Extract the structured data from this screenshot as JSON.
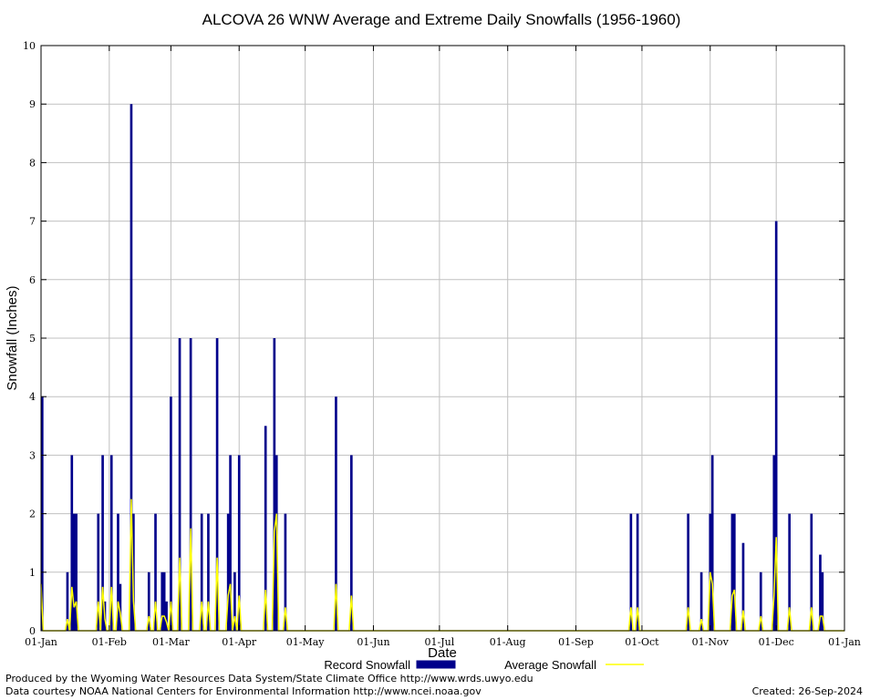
{
  "chart_data": {
    "type": "bar",
    "title": "ALCOVA 26 WNW Average and Extreme Daily Snowfalls (1956-1960)",
    "xlabel": "Date",
    "ylabel": "Snowfall (Inches)",
    "ylim": [
      0,
      10
    ],
    "yticks": [
      "0",
      "1",
      "2",
      "3",
      "4",
      "5",
      "6",
      "7",
      "8",
      "9",
      "10"
    ],
    "xlim_days": [
      1,
      366
    ],
    "xticks": [
      {
        "label": "01-Jan",
        "day": 1
      },
      {
        "label": "01-Feb",
        "day": 32
      },
      {
        "label": "01-Mar",
        "day": 60
      },
      {
        "label": "01-Apr",
        "day": 91
      },
      {
        "label": "01-May",
        "day": 121
      },
      {
        "label": "01-Jun",
        "day": 152
      },
      {
        "label": "01-Jul",
        "day": 182
      },
      {
        "label": "01-Aug",
        "day": 213
      },
      {
        "label": "01-Sep",
        "day": 244
      },
      {
        "label": "01-Oct",
        "day": 274
      },
      {
        "label": "01-Nov",
        "day": 305
      },
      {
        "label": "01-Dec",
        "day": 335
      },
      {
        "label": "01-Jan",
        "day": 366
      }
    ],
    "grid": true,
    "legend_position": "bottom",
    "series": [
      {
        "name": "Record Snowfall",
        "color": "#00008b",
        "points": [
          {
            "date": "01-Jan",
            "value": 4.0
          },
          {
            "date": "13-Jan",
            "value": 1.0
          },
          {
            "date": "15-Jan",
            "value": 3.0
          },
          {
            "date": "16-Jan",
            "value": 2.0
          },
          {
            "date": "17-Jan",
            "value": 2.0
          },
          {
            "date": "27-Jan",
            "value": 2.0
          },
          {
            "date": "29-Jan",
            "value": 3.0
          },
          {
            "date": "30-Jan",
            "value": 0.5
          },
          {
            "date": "02-Feb",
            "value": 3.0
          },
          {
            "date": "05-Feb",
            "value": 2.0
          },
          {
            "date": "06-Feb",
            "value": 0.8
          },
          {
            "date": "11-Feb",
            "value": 9.0
          },
          {
            "date": "12-Feb",
            "value": 2.0
          },
          {
            "date": "19-Feb",
            "value": 1.0
          },
          {
            "date": "22-Feb",
            "value": 2.0
          },
          {
            "date": "25-Feb",
            "value": 1.0
          },
          {
            "date": "26-Feb",
            "value": 1.0
          },
          {
            "date": "27-Feb",
            "value": 0.5
          },
          {
            "date": "29-Feb",
            "value": 4.0
          },
          {
            "date": "01-Mar",
            "value": 2.0
          },
          {
            "date": "05-Mar",
            "value": 5.0
          },
          {
            "date": "10-Mar",
            "value": 5.0
          },
          {
            "date": "15-Mar",
            "value": 2.0
          },
          {
            "date": "18-Mar",
            "value": 2.0
          },
          {
            "date": "22-Mar",
            "value": 5.0
          },
          {
            "date": "27-Mar",
            "value": 2.0
          },
          {
            "date": "28-Mar",
            "value": 3.0
          },
          {
            "date": "30-Mar",
            "value": 1.0
          },
          {
            "date": "01-Apr",
            "value": 3.0
          },
          {
            "date": "13-Apr",
            "value": 3.5
          },
          {
            "date": "17-Apr",
            "value": 5.0
          },
          {
            "date": "18-Apr",
            "value": 3.0
          },
          {
            "date": "22-Apr",
            "value": 2.0
          },
          {
            "date": "15-May",
            "value": 4.0
          },
          {
            "date": "22-May",
            "value": 3.0
          },
          {
            "date": "26-Sep",
            "value": 2.0
          },
          {
            "date": "29-Sep",
            "value": 2.0
          },
          {
            "date": "22-Oct",
            "value": 2.0
          },
          {
            "date": "28-Oct",
            "value": 1.0
          },
          {
            "date": "01-Nov",
            "value": 2.0
          },
          {
            "date": "02-Nov",
            "value": 3.0
          },
          {
            "date": "11-Nov",
            "value": 2.0
          },
          {
            "date": "12-Nov",
            "value": 2.0
          },
          {
            "date": "16-Nov",
            "value": 1.5
          },
          {
            "date": "24-Nov",
            "value": 1.0
          },
          {
            "date": "30-Nov",
            "value": 3.0
          },
          {
            "date": "01-Dec",
            "value": 7.0
          },
          {
            "date": "07-Dec",
            "value": 2.0
          },
          {
            "date": "17-Dec",
            "value": 2.0
          },
          {
            "date": "21-Dec",
            "value": 1.3
          },
          {
            "date": "22-Dec",
            "value": 1.0
          }
        ]
      },
      {
        "name": "Average Snowfall",
        "color": "#ffff00",
        "points": [
          {
            "date": "01-Jan",
            "value": 0.8
          },
          {
            "date": "13-Jan",
            "value": 0.2
          },
          {
            "date": "15-Jan",
            "value": 0.75
          },
          {
            "date": "16-Jan",
            "value": 0.4
          },
          {
            "date": "17-Jan",
            "value": 0.5
          },
          {
            "date": "27-Jan",
            "value": 0.5
          },
          {
            "date": "29-Jan",
            "value": 0.75
          },
          {
            "date": "30-Jan",
            "value": 0.2
          },
          {
            "date": "02-Feb",
            "value": 0.75
          },
          {
            "date": "05-Feb",
            "value": 0.5
          },
          {
            "date": "06-Feb",
            "value": 0.3
          },
          {
            "date": "11-Feb",
            "value": 2.25
          },
          {
            "date": "12-Feb",
            "value": 0.5
          },
          {
            "date": "19-Feb",
            "value": 0.25
          },
          {
            "date": "22-Feb",
            "value": 0.5
          },
          {
            "date": "25-Feb",
            "value": 0.25
          },
          {
            "date": "26-Feb",
            "value": 0.25
          },
          {
            "date": "27-Feb",
            "value": 0.15
          },
          {
            "date": "29-Feb",
            "value": 1.0
          },
          {
            "date": "01-Mar",
            "value": 0.5
          },
          {
            "date": "05-Mar",
            "value": 1.25
          },
          {
            "date": "10-Mar",
            "value": 1.75
          },
          {
            "date": "15-Mar",
            "value": 0.5
          },
          {
            "date": "18-Mar",
            "value": 0.5
          },
          {
            "date": "22-Mar",
            "value": 1.25
          },
          {
            "date": "27-Mar",
            "value": 0.6
          },
          {
            "date": "28-Mar",
            "value": 0.8
          },
          {
            "date": "30-Mar",
            "value": 0.25
          },
          {
            "date": "01-Apr",
            "value": 0.6
          },
          {
            "date": "13-Apr",
            "value": 0.7
          },
          {
            "date": "17-Apr",
            "value": 1.7
          },
          {
            "date": "18-Apr",
            "value": 2.0
          },
          {
            "date": "22-Apr",
            "value": 0.4
          },
          {
            "date": "15-May",
            "value": 0.8
          },
          {
            "date": "22-May",
            "value": 0.6
          },
          {
            "date": "26-Sep",
            "value": 0.4
          },
          {
            "date": "29-Sep",
            "value": 0.4
          },
          {
            "date": "22-Oct",
            "value": 0.4
          },
          {
            "date": "28-Oct",
            "value": 0.2
          },
          {
            "date": "01-Nov",
            "value": 1.0
          },
          {
            "date": "02-Nov",
            "value": 0.8
          },
          {
            "date": "11-Nov",
            "value": 0.6
          },
          {
            "date": "12-Nov",
            "value": 0.7
          },
          {
            "date": "16-Nov",
            "value": 0.35
          },
          {
            "date": "24-Nov",
            "value": 0.25
          },
          {
            "date": "30-Nov",
            "value": 0.6
          },
          {
            "date": "01-Dec",
            "value": 1.6
          },
          {
            "date": "07-Dec",
            "value": 0.4
          },
          {
            "date": "17-Dec",
            "value": 0.4
          },
          {
            "date": "21-Dec",
            "value": 0.25
          },
          {
            "date": "22-Dec",
            "value": 0.25
          }
        ]
      }
    ]
  },
  "footer": {
    "produced_by": "Produced by the Wyoming Water Resources Data System/State Climate Office http://www.wrds.uwyo.edu",
    "data_courtesy": "Data courtesy NOAA National Centers for Environmental Information http://www.ncei.noaa.gov",
    "created": "Created:  26-Sep-2024"
  }
}
